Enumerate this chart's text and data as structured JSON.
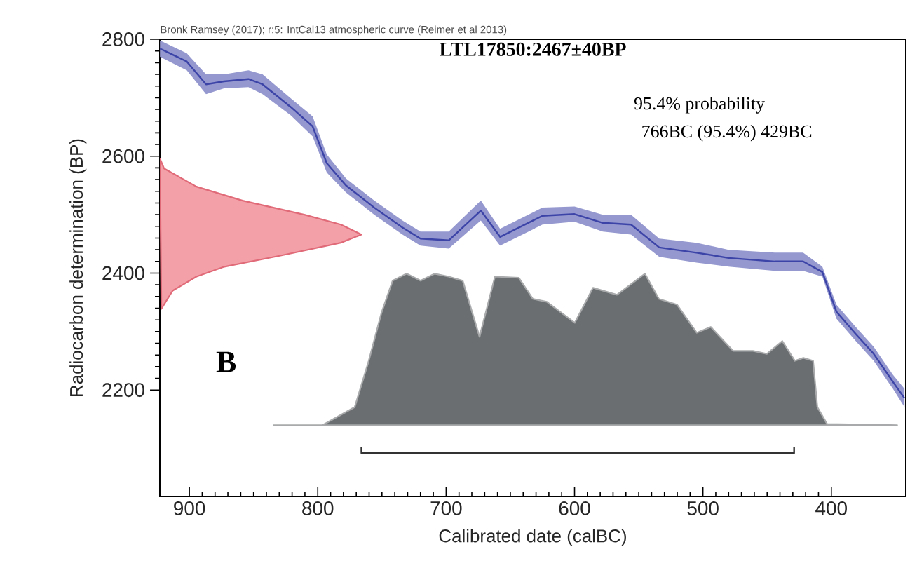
{
  "chart_data": {
    "type": "line",
    "title": "LTL17850:2467±40BP",
    "subtitle": "Bronk Ramsey (2017); r:5: IntCal13 atmospheric curve (Reimer et al 2013)",
    "xlabel": "Calibrated date (calBC)",
    "ylabel": "Radiocarbon determination (BP)",
    "annotations": [
      "95.4% probability",
      "766BC (95.4%) 429BC",
      "B"
    ],
    "xlim": [
      923,
      342
    ],
    "ylim": [
      2018,
      2800
    ],
    "xticks": [
      900,
      800,
      700,
      600,
      500,
      400
    ],
    "yticks": [
      2200,
      2400,
      2600,
      2800
    ],
    "grid": false,
    "marker": "none",
    "series": [
      {
        "color": "#3d44a8",
        "x": [
          922.9,
          902,
          887,
          873,
          854,
          843,
          821,
          804,
          793,
          778,
          756,
          734,
          720,
          698,
          673,
          658,
          625,
          600,
          578,
          556,
          534,
          505,
          480,
          444,
          422,
          407,
          396,
          381,
          367,
          352,
          343
        ],
        "values": [
          2784,
          2762,
          2723,
          2728,
          2732,
          2723,
          2684,
          2651,
          2588,
          2550,
          2512,
          2478,
          2459,
          2456,
          2507,
          2462,
          2498,
          2501,
          2486,
          2483,
          2444,
          2435,
          2426,
          2420,
          2420,
          2402,
          2334,
          2296,
          2262,
          2214,
          2186
        ],
        "upper": [
          2798,
          2776,
          2740,
          2740,
          2747,
          2740,
          2699,
          2668,
          2603,
          2562,
          2524,
          2490,
          2471,
          2471,
          2524,
          2476,
          2512,
          2514,
          2500,
          2500,
          2459,
          2452,
          2440,
          2435,
          2435,
          2411,
          2346,
          2308,
          2274,
          2226,
          2202
        ],
        "lower": [
          2770,
          2747,
          2706,
          2716,
          2718,
          2706,
          2670,
          2634,
          2572,
          2538,
          2500,
          2466,
          2447,
          2442,
          2490,
          2447,
          2483,
          2488,
          2471,
          2466,
          2428,
          2418,
          2411,
          2404,
          2404,
          2394,
          2322,
          2284,
          2250,
          2202,
          2171
        ]
      },
      {
        "type": "area",
        "color": "#f4a0a8",
        "x": [
          922.9,
          919.7,
          894.5,
          858.5,
          810.5,
          782,
          766,
          782,
          829,
          872.7,
          894.5,
          913,
          921.8
        ],
        "values": [
          2596,
          2579,
          2548,
          2524,
          2500,
          2483,
          2466,
          2452,
          2430,
          2411,
          2394,
          2370,
          2339
        ]
      },
      {
        "type": "area",
        "color": "#6b6e70",
        "x": [
          834.5,
          796.3,
          771.2,
          760.3,
          750.4,
          741.7,
          730.8,
          719.9,
          708.9,
          698.0,
          687.1,
          674.0,
          662.0,
          643.4,
          632.5,
          621.6,
          599.8,
          585.6,
          567.0,
          545.2,
          534.3,
          520.1,
          504.8,
          493.9,
          476.4,
          461.1,
          450.2,
          438.2,
          428.4,
          421.8,
          414.2,
          410.9,
          403.3,
          348.7
        ],
        "values": [
          2140,
          2140,
          2171,
          2250,
          2332,
          2387,
          2399,
          2387,
          2399,
          2394,
          2387,
          2291,
          2394,
          2392,
          2356,
          2351,
          2315,
          2375,
          2363,
          2399,
          2356,
          2346,
          2298,
          2308,
          2267,
          2267,
          2262,
          2284,
          2250,
          2255,
          2250,
          2171,
          2142,
          2140
        ]
      },
      {
        "type": "line",
        "color": "#333333",
        "x": [
          766,
          766,
          429,
          429
        ],
        "values": [
          2102,
          2092,
          2092,
          2102
        ]
      }
    ]
  }
}
